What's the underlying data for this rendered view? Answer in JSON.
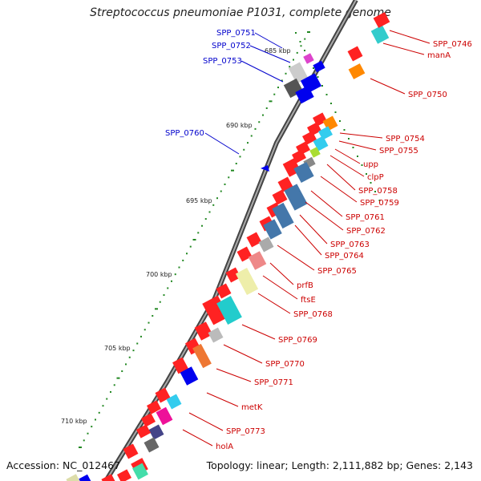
{
  "title": "Streptococcus pneumoniae P1031, complete genome",
  "footer": {
    "accession": "Accession: NC_012467",
    "topology": "Topology: linear; Length: 2,111,882 bp; Genes: 2,143"
  },
  "colors": {
    "forward_label": "#cc0000",
    "reverse_label": "#0000cc",
    "backbone": "#777777"
  },
  "ticks": [
    "685 kbp",
    "690 kbp",
    "695 kbp",
    "700 kbp",
    "705 kbp",
    "710 kbp"
  ],
  "labels_right": [
    "SPP_0746",
    "manA",
    "SPP_0750",
    "SPP_0754",
    "SPP_0755",
    "upp",
    "clpP",
    "SPP_0758",
    "SPP_0759",
    "SPP_0761",
    "SPP_0762",
    "SPP_0763",
    "SPP_0764",
    "SPP_0765",
    "prfB",
    "ftsE",
    "SPP_0768",
    "SPP_0769",
    "SPP_0770",
    "SPP_0771",
    "metK",
    "SPP_0773",
    "holA"
  ],
  "labels_left": [
    "SPP_0751",
    "SPP_0752",
    "SPP_0753",
    "SPP_0760"
  ]
}
